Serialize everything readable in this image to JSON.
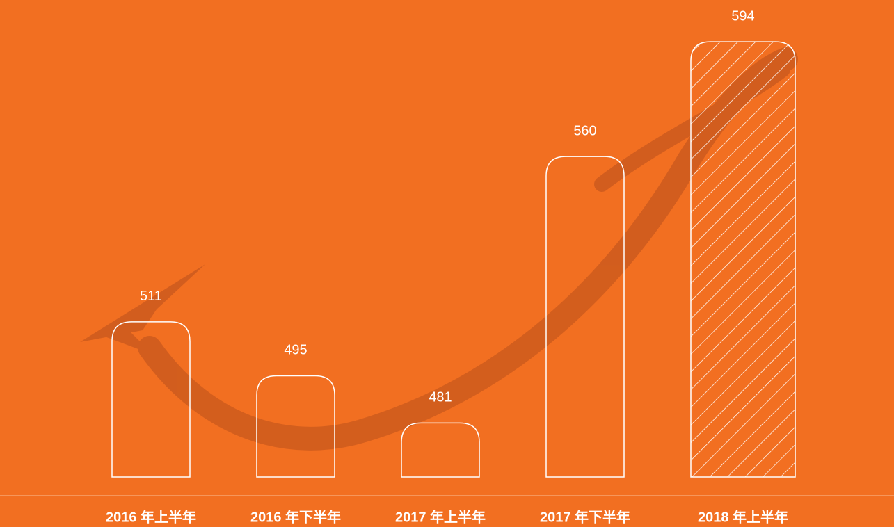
{
  "chart_data": {
    "type": "bar",
    "categories": [
      "2016 年上半年",
      "2016 年下半年",
      "2017 年上半年",
      "2017 年下半年",
      "2018 年上半年"
    ],
    "values": [
      511,
      495,
      481,
      560,
      594
    ],
    "ylim": [
      465,
      600
    ],
    "color": "#ffffff",
    "background": "#f26f21",
    "hatch": [
      false,
      false,
      false,
      false,
      true
    ]
  }
}
